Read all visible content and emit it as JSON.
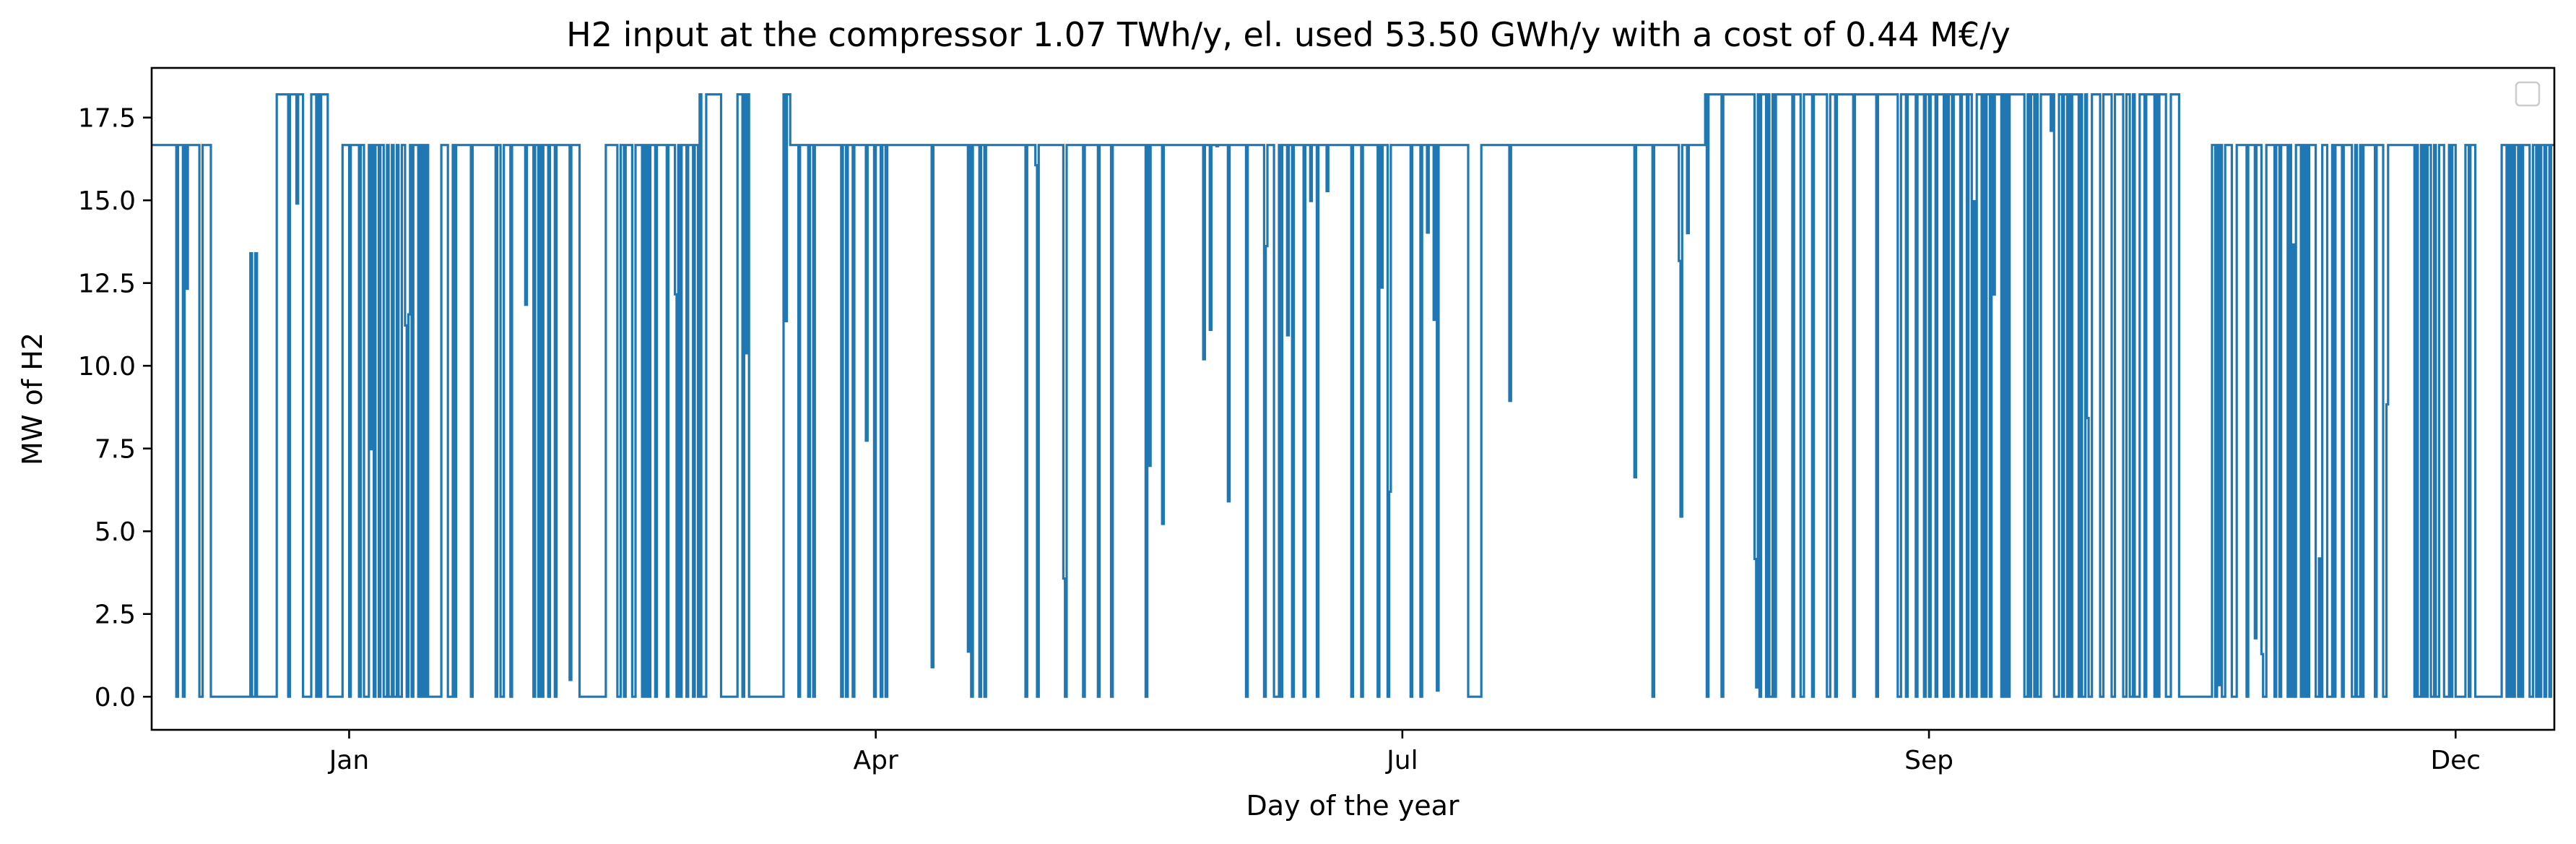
{
  "chart_data": {
    "type": "line",
    "title": "H2 input at the compressor 1.07 TWh/y, el. used 53.50 GWh/y with a cost of 0.44 M€/y",
    "xlabel": "Day of the year",
    "ylabel": "MW of H2",
    "xlim": [
      -50,
      315
    ],
    "ylim": [
      -1.0,
      19.0
    ],
    "x_ticks": [
      {
        "label": "Jan",
        "value": -20
      },
      {
        "label": "Apr",
        "value": 60
      },
      {
        "label": "Jul",
        "value": 140
      },
      {
        "label": "Sep",
        "value": 220
      },
      {
        "label": "Dec",
        "value": 300
      }
    ],
    "y_ticks": [
      0.0,
      2.5,
      5.0,
      7.5,
      10.0,
      12.5,
      15.0,
      17.5
    ],
    "y_tick_labels": [
      "0.0",
      "2.5",
      "5.0",
      "7.5",
      "10.0",
      "12.5",
      "15.0",
      "17.5"
    ],
    "grid": false,
    "legend": {
      "placement": "top-right",
      "entries": []
    },
    "series": [
      {
        "color": "#1f77b4",
        "segments": [
          {
            "x0": -50,
            "x1": -47,
            "pattern": "flat",
            "level": 16.67
          },
          {
            "x0": -47,
            "x1": -41,
            "pattern": "pulse",
            "level": 16.67,
            "density": 0.8
          },
          {
            "x0": -41,
            "x1": -35,
            "pattern": "flat",
            "level": 0
          },
          {
            "x0": -35,
            "x1": -34,
            "pattern": "pulse",
            "level": 13.4,
            "density": 0.6
          },
          {
            "x0": -34,
            "x1": -31,
            "pattern": "flat",
            "level": 0
          },
          {
            "x0": -31,
            "x1": -27,
            "pattern": "pulse",
            "level": 18.2,
            "density": 0.85
          },
          {
            "x0": -27,
            "x1": -26,
            "pattern": "flat",
            "level": 0
          },
          {
            "x0": -26,
            "x1": -23,
            "pattern": "pulse",
            "level": 18.2,
            "density": 0.6
          },
          {
            "x0": -23,
            "x1": -21,
            "pattern": "flat",
            "level": 0
          },
          {
            "x0": -21,
            "x1": -8,
            "pattern": "pulse",
            "level": 16.67,
            "density": 0.55
          },
          {
            "x0": -8,
            "x1": -6,
            "pattern": "flat",
            "level": 0
          },
          {
            "x0": -6,
            "x1": 15,
            "pattern": "pulse",
            "level": 16.67,
            "density": 0.75
          },
          {
            "x0": 15,
            "x1": 19,
            "pattern": "flat",
            "level": 0
          },
          {
            "x0": 19,
            "x1": 33,
            "pattern": "pulse",
            "level": 16.67,
            "density": 0.8
          },
          {
            "x0": 33,
            "x1": 37,
            "pattern": "pulse",
            "level": 18.2,
            "density": 0.5
          },
          {
            "x0": 37,
            "x1": 39,
            "pattern": "flat",
            "level": 0
          },
          {
            "x0": 39,
            "x1": 41,
            "pattern": "pulse",
            "level": 18.2,
            "density": 0.6
          },
          {
            "x0": 41,
            "x1": 46,
            "pattern": "flat",
            "level": 0
          },
          {
            "x0": 46,
            "x1": 47,
            "pattern": "pulse",
            "level": 18.2,
            "density": 0.6
          },
          {
            "x0": 47,
            "x1": 49,
            "pattern": "pulse",
            "level": 16.67,
            "density": 0.9
          },
          {
            "x0": 49,
            "x1": 150,
            "pattern": "pulse",
            "level": 16.67,
            "density": 0.88
          },
          {
            "x0": 150,
            "x1": 152,
            "pattern": "flat",
            "level": 0
          },
          {
            "x0": 152,
            "x1": 186,
            "pattern": "pulse",
            "level": 16.67,
            "density": 0.92
          },
          {
            "x0": 186,
            "x1": 215,
            "pattern": "pulse",
            "level": 18.2,
            "density": 0.85
          },
          {
            "x0": 215,
            "x1": 225,
            "pattern": "pulse",
            "level": 18.2,
            "density": 0.7
          },
          {
            "x0": 225,
            "x1": 258,
            "pattern": "pulse",
            "level": 18.2,
            "density": 0.6
          },
          {
            "x0": 258,
            "x1": 263,
            "pattern": "flat",
            "level": 0
          },
          {
            "x0": 263,
            "x1": 303,
            "pattern": "pulse",
            "level": 16.67,
            "density": 0.65
          },
          {
            "x0": 303,
            "x1": 307,
            "pattern": "flat",
            "level": 0
          },
          {
            "x0": 307,
            "x1": 315,
            "pattern": "pulse",
            "level": 16.67,
            "density": 0.5
          }
        ]
      }
    ]
  }
}
